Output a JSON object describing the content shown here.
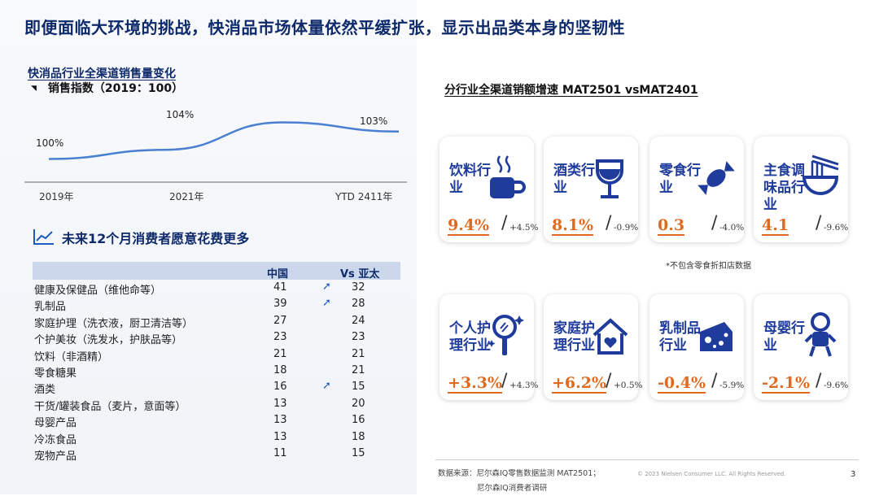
{
  "title": "即便面临大环境的挑战，快消品市场体量依然平缓扩张，显示出品类本身的坚韧性",
  "line_section": {
    "title": "快消品行业全渠道销售量变化",
    "subtitle": "销售指数（2019：100）"
  },
  "chart_data": [
    {
      "type": "line",
      "title": "快消品行业全渠道销售量变化",
      "subtitle": "销售指数（2019：100）",
      "x_ticks": [
        "2019年",
        "2021年",
        "YTD 2411年"
      ],
      "series": [
        {
          "values": [
            100,
            101,
            104,
            103
          ]
        }
      ],
      "point_labels": [
        "100%",
        "104%",
        "103%"
      ],
      "ylim": [
        98,
        106
      ],
      "grid": false
    },
    {
      "type": "table",
      "title": "未来12个月消费者愿意花费更多",
      "columns": [
        "",
        "中国",
        "Vs 亚太"
      ],
      "rows": [
        {
          "name": "健康及保健品（维他命等）",
          "cn": "41",
          "arrow": "➚",
          "ap": "32"
        },
        {
          "name": "乳制品",
          "cn": "39",
          "arrow": "➚",
          "ap": "28"
        },
        {
          "name": "家庭护理（洗衣液，厨卫清洁等）",
          "cn": "27",
          "arrow": "",
          "ap": "24"
        },
        {
          "name": "个护美妆（洗发水，护肤品等）",
          "cn": "23",
          "arrow": "",
          "ap": "23"
        },
        {
          "name": "饮料（非酒精）",
          "cn": "21",
          "arrow": "",
          "ap": "21"
        },
        {
          "name": "零食糖果",
          "cn": "18",
          "arrow": "",
          "ap": "21"
        },
        {
          "name": "酒类",
          "cn": "16",
          "arrow": "➚",
          "ap": "15"
        },
        {
          "name": "干货/罐装食品（麦片，意面等）",
          "cn": "13",
          "arrow": "",
          "ap": "20"
        },
        {
          "name": "母婴产品",
          "cn": "13",
          "arrow": "",
          "ap": "16"
        },
        {
          "name": "冷冻食品",
          "cn": "13",
          "arrow": "",
          "ap": "18"
        },
        {
          "name": "宠物产品",
          "cn": "11",
          "arrow": "",
          "ap": "15"
        }
      ]
    },
    {
      "type": "table",
      "title": "分行业全渠道销额增速 MAT2501 vsMAT2401",
      "cards": [
        {
          "label": "饮料行业",
          "main": "9.4%",
          "ref": "+4.5%",
          "icon": "coffee-cup-icon"
        },
        {
          "label": "酒类行业",
          "main": "8.1%",
          "ref": "-0.9%",
          "icon": "wine-glass-icon"
        },
        {
          "label": "零食行业",
          "main": "0.3",
          "ref": "-4.0%",
          "icon": "candy-icon"
        },
        {
          "label": "主食调味品行业",
          "main": "4.1",
          "ref": "-9.6%",
          "icon": "noodle-bowl-icon"
        },
        {
          "label": "个人护理行业",
          "main": "+3.3%",
          "ref": "+4.3%",
          "icon": "mirror-icon"
        },
        {
          "label": "家庭护理行业",
          "main": "+6.2%",
          "ref": "+0.5%",
          "icon": "house-heart-icon"
        },
        {
          "label": "乳制品行业",
          "main": "-0.4%",
          "ref": "-5.9%",
          "icon": "cheese-icon"
        },
        {
          "label": "母婴行业",
          "main": "-2.1%",
          "ref": "-9.6%",
          "icon": "baby-icon"
        }
      ]
    }
  ],
  "right_section": {
    "title": "分行业全渠道销额增速 MAT2501 vsMAT2401"
  },
  "wish_section": {
    "title": "未来12个月消费者愿意花费更多"
  },
  "note": "*不包含零食折扣店数据",
  "source_line1": "数据来源：尼尔森IQ零售数据监测 MAT2501；",
  "source_line2": "尼尔森IQ消费者调研",
  "copyright": "© 2023 Nielsen Consumer LLC. All Rights Reserved.",
  "page_number": "3",
  "colors": {
    "navy": "#0e2a6b",
    "card_label": "#1f3c9c",
    "accent_orange": "#e06a1f",
    "line": "#4a7fd1"
  }
}
